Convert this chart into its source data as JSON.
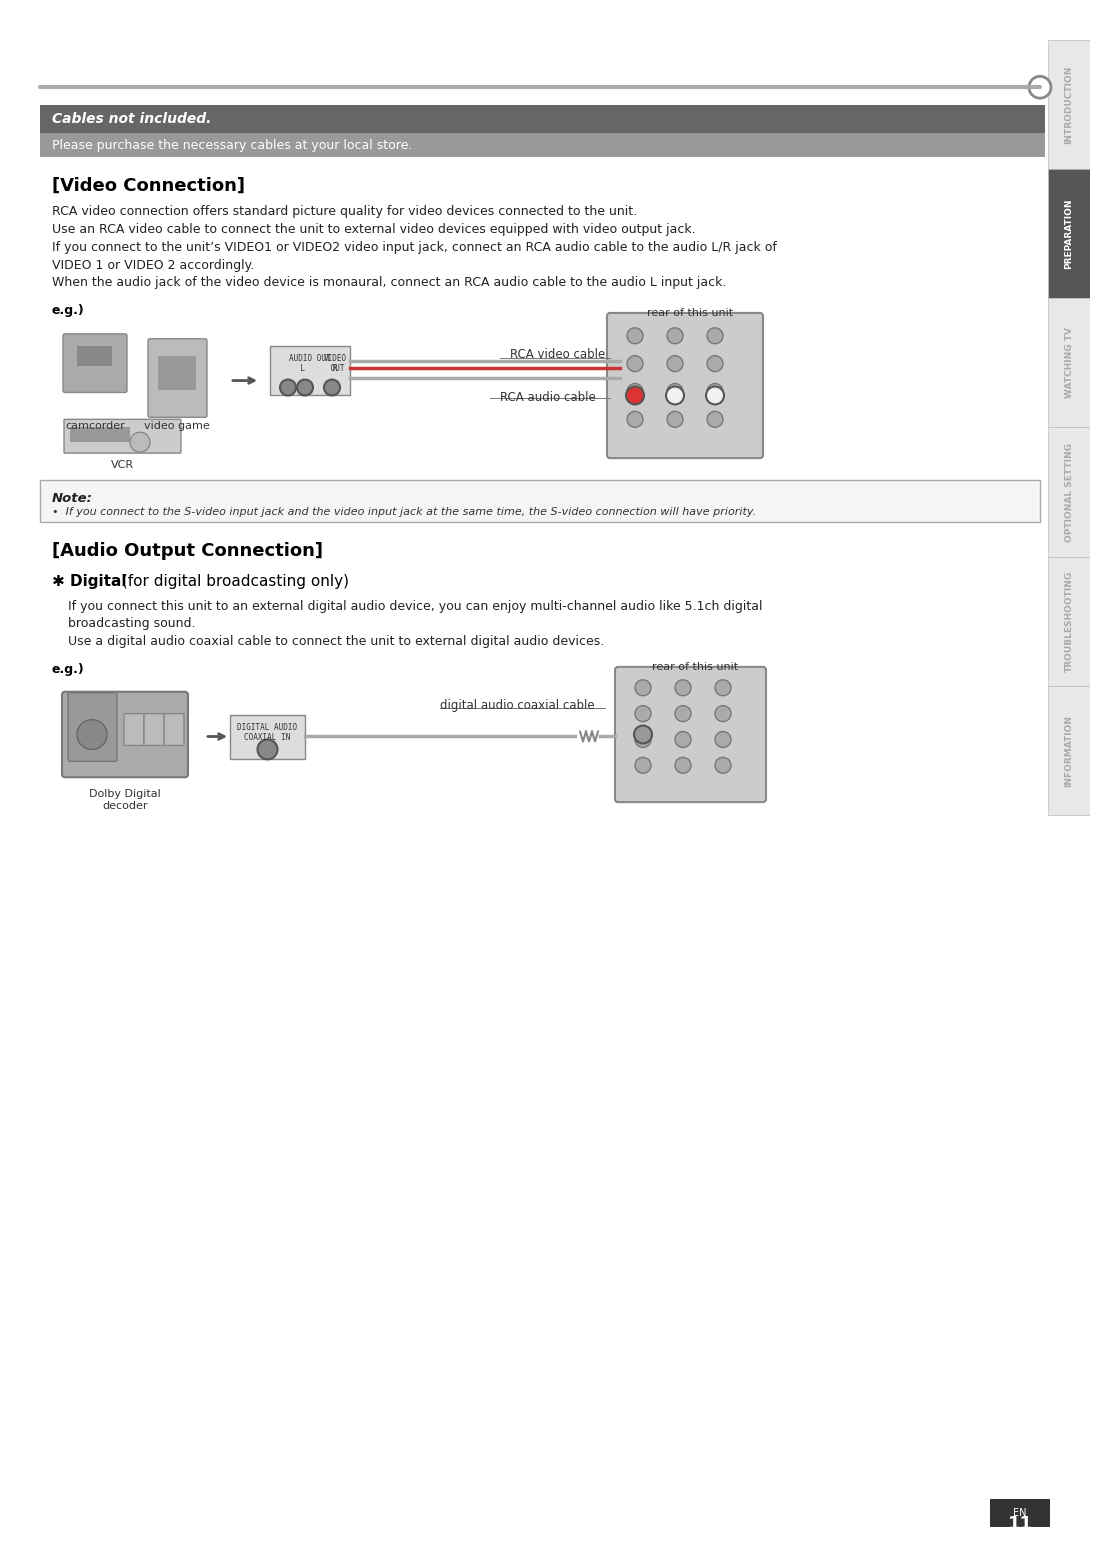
{
  "page_bg": "#ffffff",
  "sidebar_bg": "#555555",
  "sidebar_active_bg": "#555555",
  "header_bar_color": "#888888",
  "cables_bar_bg": "#666666",
  "note_bg": "#f0f0f0",
  "note_border": "#888888",
  "sidebar_items": [
    "INTRODUCTION",
    "PREPARATION",
    "WATCHING TV",
    "OPTIONAL SETTING",
    "TROUBLESHOOTING",
    "INFORMATION"
  ],
  "sidebar_active_index": 1,
  "top_bar_text": "Cables not included.",
  "sub_bar_text": "Please purchase the necessary cables at your local store.",
  "section1_title": "[Video Connection]",
  "section1_body": [
    "RCA video connection offers standard picture quality for video devices connected to the unit.",
    "Use an RCA video cable to connect the unit to external video devices equipped with video output jack.",
    "If you connect to the unit’s VIDEO1 or VIDEO2 video input jack, connect an RCA audio cable to the audio L/R jack of",
    "VIDEO 1 or VIDEO 2 accordingly.",
    "When the audio jack of the video device is monaural, connect an RCA audio cable to the audio L input jack."
  ],
  "eg_label": "e.g.)",
  "device_labels": [
    "camcorder",
    "video game",
    "VCR"
  ],
  "rca_video_label": "RCA video cable",
  "rca_audio_label": "RCA audio cable",
  "rear_unit_label": "rear of this unit",
  "note_title": "Note:",
  "note_body": "•  If you connect to the S-video input jack and the video input jack at the same time, the S-video connection will have priority.",
  "section2_title": "[Audio Output Connection]",
  "section2_sub_title": "✱ Digital",
  "section2_sub_title2": " (for digital broadcasting only)",
  "section2_body": [
    "If you connect this unit to an external digital audio device, you can enjoy multi-channel audio like 5.1ch digital",
    "broadcasting sound.",
    "Use a digital audio coaxial cable to connect the unit to external digital audio devices."
  ],
  "eg_label2": "e.g.)",
  "digital_audio_label": "digital audio coaxial cable",
  "rear_unit_label2": "rear of this unit",
  "dolby_label": [
    "Dolby Digital",
    "decoder"
  ],
  "page_num": "11",
  "en_label": "EN",
  "circle_color": "#888888",
  "line_color": "#aaaaaa"
}
